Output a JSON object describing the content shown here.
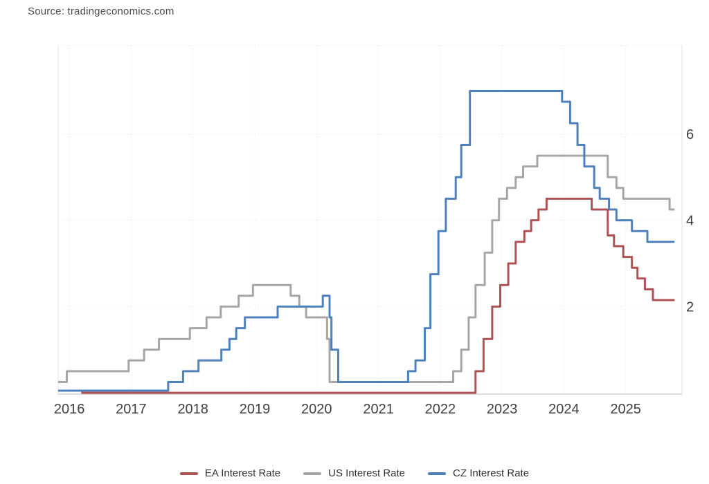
{
  "source_label": "Source: tradingeconomics.com",
  "colors": {
    "ea_line": "#b05153",
    "us_line": "#a6a6a6",
    "cz_line": "#4d81be",
    "grid": "#e2e2e2",
    "plot_border": "#e0e0e0",
    "axis_line": "#d0d0d0",
    "tick_text": "#404040",
    "background": "#ffffff"
  },
  "legend": {
    "items": [
      {
        "label": "EA Interest Rate",
        "color": "#b05153"
      },
      {
        "label": "US Interest Rate",
        "color": "#a6a6a6"
      },
      {
        "label": "CZ Interest Rate",
        "color": "#4d81be"
      }
    ]
  },
  "chart_data": {
    "type": "line",
    "step": true,
    "title": "",
    "xlabel": "",
    "ylabel": "",
    "x_ticks": [
      2016,
      2017,
      2018,
      2019,
      2020,
      2021,
      2022,
      2023,
      2024,
      2025
    ],
    "y_ticks": [
      2,
      4,
      6
    ],
    "x_range": [
      2015.82,
      2025.91
    ],
    "y_range": [
      -0.03,
      8.05
    ],
    "x_end": 2025.79,
    "grid": true,
    "legend_position": "bottom",
    "series": [
      {
        "name": "EA Interest Rate",
        "color": "#b05153",
        "points": [
          [
            2015.82,
            0.05
          ],
          [
            2016.21,
            0.0
          ],
          [
            2022.57,
            0.5
          ],
          [
            2022.7,
            1.25
          ],
          [
            2022.84,
            2.0
          ],
          [
            2022.97,
            2.5
          ],
          [
            2023.1,
            3.0
          ],
          [
            2023.22,
            3.5
          ],
          [
            2023.36,
            3.75
          ],
          [
            2023.47,
            4.0
          ],
          [
            2023.59,
            4.25
          ],
          [
            2023.72,
            4.5
          ],
          [
            2024.45,
            4.25
          ],
          [
            2024.71,
            3.65
          ],
          [
            2024.81,
            3.4
          ],
          [
            2024.96,
            3.15
          ],
          [
            2025.1,
            2.9
          ],
          [
            2025.19,
            2.65
          ],
          [
            2025.31,
            2.4
          ],
          [
            2025.44,
            2.15
          ]
        ]
      },
      {
        "name": "US Interest Rate",
        "color": "#a6a6a6",
        "points": [
          [
            2015.82,
            0.25
          ],
          [
            2015.96,
            0.5
          ],
          [
            2016.96,
            0.75
          ],
          [
            2017.21,
            1.0
          ],
          [
            2017.45,
            1.25
          ],
          [
            2017.95,
            1.5
          ],
          [
            2018.22,
            1.75
          ],
          [
            2018.45,
            2.0
          ],
          [
            2018.74,
            2.25
          ],
          [
            2018.97,
            2.5
          ],
          [
            2019.58,
            2.25
          ],
          [
            2019.72,
            2.0
          ],
          [
            2019.83,
            1.75
          ],
          [
            2020.17,
            1.25
          ],
          [
            2020.21,
            0.25
          ],
          [
            2022.21,
            0.5
          ],
          [
            2022.34,
            1.0
          ],
          [
            2022.46,
            1.75
          ],
          [
            2022.57,
            2.5
          ],
          [
            2022.72,
            3.25
          ],
          [
            2022.84,
            4.0
          ],
          [
            2022.95,
            4.5
          ],
          [
            2023.08,
            4.75
          ],
          [
            2023.22,
            5.0
          ],
          [
            2023.34,
            5.25
          ],
          [
            2023.57,
            5.5
          ],
          [
            2024.71,
            5.0
          ],
          [
            2024.85,
            4.75
          ],
          [
            2024.96,
            4.5
          ],
          [
            2025.71,
            4.25
          ]
        ]
      },
      {
        "name": "CZ Interest Rate",
        "color": "#4d81be",
        "points": [
          [
            2015.82,
            0.05
          ],
          [
            2017.6,
            0.25
          ],
          [
            2017.84,
            0.5
          ],
          [
            2018.09,
            0.75
          ],
          [
            2018.46,
            1.0
          ],
          [
            2018.59,
            1.25
          ],
          [
            2018.7,
            1.5
          ],
          [
            2018.84,
            1.75
          ],
          [
            2019.37,
            2.0
          ],
          [
            2020.1,
            2.25
          ],
          [
            2020.21,
            1.75
          ],
          [
            2020.24,
            1.0
          ],
          [
            2020.35,
            0.25
          ],
          [
            2021.48,
            0.5
          ],
          [
            2021.6,
            0.75
          ],
          [
            2021.75,
            1.5
          ],
          [
            2021.84,
            2.75
          ],
          [
            2021.97,
            3.75
          ],
          [
            2022.09,
            4.5
          ],
          [
            2022.25,
            5.0
          ],
          [
            2022.34,
            5.75
          ],
          [
            2022.48,
            7.0
          ],
          [
            2023.97,
            6.75
          ],
          [
            2024.1,
            6.25
          ],
          [
            2024.22,
            5.75
          ],
          [
            2024.33,
            5.25
          ],
          [
            2024.49,
            4.75
          ],
          [
            2024.58,
            4.5
          ],
          [
            2024.73,
            4.25
          ],
          [
            2024.85,
            4.0
          ],
          [
            2025.1,
            3.75
          ],
          [
            2025.35,
            3.5
          ]
        ]
      }
    ]
  }
}
